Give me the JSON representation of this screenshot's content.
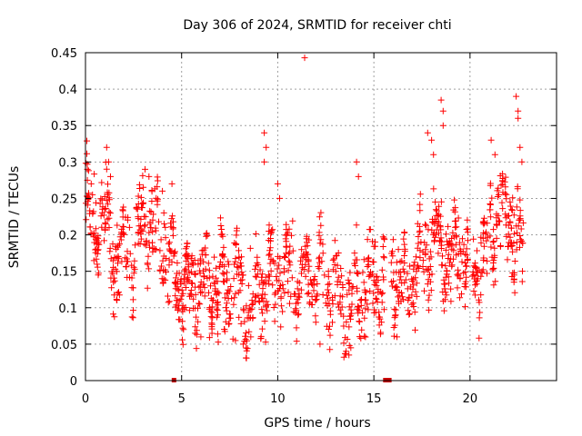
{
  "chart_data": {
    "type": "scatter",
    "title": "Day 306 of 2024, SRMTID for receiver chti",
    "xlabel": "GPS time / hours",
    "ylabel": "SRMTID / TECUs",
    "xlim": [
      0,
      24.5
    ],
    "ylim": [
      0,
      0.45
    ],
    "x_ticks": [
      0,
      5,
      10,
      15,
      20
    ],
    "x_tick_labels": [
      "0",
      "5",
      "10",
      "15",
      "20"
    ],
    "y_ticks": [
      0,
      0.05,
      0.1,
      0.15,
      0.2,
      0.25,
      0.3,
      0.35,
      0.4,
      0.45
    ],
    "y_tick_labels": [
      "0",
      "0.05",
      "0.1",
      "0.15",
      "0.2",
      "0.25",
      "0.3",
      "0.35",
      "0.4",
      "0.45"
    ],
    "grid": true,
    "marker": "+",
    "color": "#ff0000",
    "outlier_color": "#cc0000",
    "series": [
      {
        "trend": [
          [
            0.0,
            0.24
          ],
          [
            0.5,
            0.21
          ],
          [
            1.0,
            0.22
          ],
          [
            1.5,
            0.17
          ],
          [
            2.0,
            0.18
          ],
          [
            2.5,
            0.17
          ],
          [
            3.0,
            0.22
          ],
          [
            3.5,
            0.2
          ],
          [
            4.0,
            0.19
          ],
          [
            4.5,
            0.16
          ],
          [
            5.0,
            0.13
          ],
          [
            5.5,
            0.14
          ],
          [
            6.0,
            0.14
          ],
          [
            6.5,
            0.13
          ],
          [
            7.0,
            0.12
          ],
          [
            7.5,
            0.13
          ],
          [
            8.0,
            0.12
          ],
          [
            8.5,
            0.11
          ],
          [
            9.0,
            0.12
          ],
          [
            9.5,
            0.15
          ],
          [
            10.0,
            0.14
          ],
          [
            10.5,
            0.15
          ],
          [
            11.0,
            0.13
          ],
          [
            11.5,
            0.15
          ],
          [
            12.0,
            0.14
          ],
          [
            12.5,
            0.13
          ],
          [
            13.0,
            0.12
          ],
          [
            13.5,
            0.1
          ],
          [
            14.0,
            0.11
          ],
          [
            14.5,
            0.14
          ],
          [
            15.0,
            0.13
          ],
          [
            15.5,
            0.14
          ],
          [
            16.0,
            0.15
          ],
          [
            16.5,
            0.12
          ],
          [
            17.0,
            0.14
          ],
          [
            17.5,
            0.18
          ],
          [
            18.0,
            0.2
          ],
          [
            18.5,
            0.19
          ],
          [
            19.0,
            0.16
          ],
          [
            19.5,
            0.18
          ],
          [
            20.0,
            0.17
          ],
          [
            20.5,
            0.15
          ],
          [
            21.0,
            0.2
          ],
          [
            21.5,
            0.23
          ],
          [
            22.0,
            0.22
          ],
          [
            22.5,
            0.2
          ],
          [
            22.8,
            0.18
          ]
        ],
        "peaks": [
          [
            0.1,
            0.29
          ],
          [
            0.3,
            0.27
          ],
          [
            1.1,
            0.32
          ],
          [
            1.2,
            0.3
          ],
          [
            1.3,
            0.28
          ],
          [
            3.1,
            0.29
          ],
          [
            3.3,
            0.28
          ],
          [
            4.0,
            0.26
          ],
          [
            4.5,
            0.27
          ],
          [
            9.3,
            0.34
          ],
          [
            9.4,
            0.32
          ],
          [
            9.3,
            0.3
          ],
          [
            10.0,
            0.27
          ],
          [
            10.1,
            0.25
          ],
          [
            11.4,
            0.443
          ],
          [
            14.1,
            0.3
          ],
          [
            14.2,
            0.28
          ],
          [
            17.8,
            0.34
          ],
          [
            18.0,
            0.33
          ],
          [
            18.1,
            0.31
          ],
          [
            18.5,
            0.385
          ],
          [
            18.6,
            0.37
          ],
          [
            18.6,
            0.35
          ],
          [
            21.1,
            0.33
          ],
          [
            21.3,
            0.31
          ],
          [
            22.4,
            0.39
          ],
          [
            22.5,
            0.37
          ],
          [
            22.5,
            0.36
          ],
          [
            22.6,
            0.32
          ],
          [
            22.7,
            0.3
          ]
        ],
        "lows": [
          [
            8.2,
            0.05
          ],
          [
            8.6,
            0.06
          ],
          [
            13.7,
            0.035
          ],
          [
            13.8,
            0.045
          ],
          [
            16.2,
            0.06
          ],
          [
            6.0,
            0.06
          ],
          [
            12.2,
            0.05
          ],
          [
            7.8,
            0.055
          ]
        ],
        "noise": 0.045,
        "density": 1400
      }
    ],
    "zero_points": [
      4.6,
      15.6,
      15.8
    ]
  }
}
